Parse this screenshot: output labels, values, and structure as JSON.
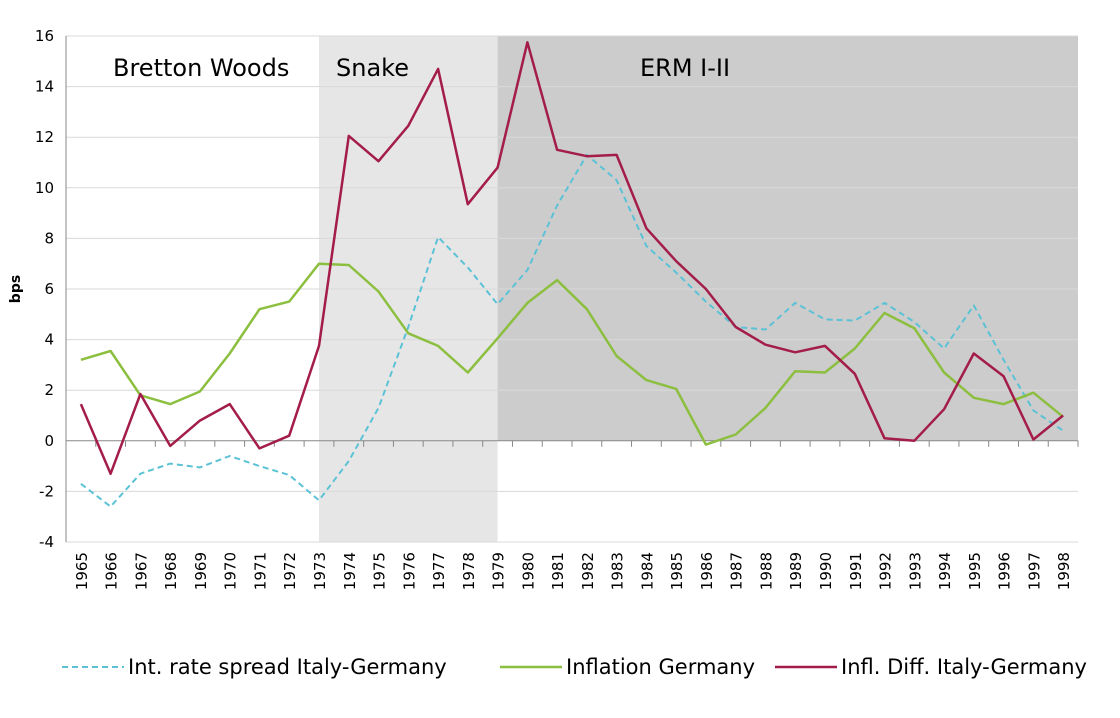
{
  "chart_data": {
    "type": "line",
    "ylabel": "bps",
    "xlabel": "",
    "ylim": [
      -4,
      16
    ],
    "yticks": [
      -4,
      -2,
      0,
      2,
      4,
      6,
      8,
      10,
      12,
      14,
      16
    ],
    "grid": "horizontal",
    "legend_position": "bottom",
    "categories": [
      "1965",
      "1966",
      "1967",
      "1968",
      "1969",
      "1970",
      "1971",
      "1972",
      "1973",
      "1974",
      "1975",
      "1976",
      "1977",
      "1978",
      "1979",
      "1980",
      "1981",
      "1982",
      "1983",
      "1984",
      "1985",
      "1986",
      "1987",
      "1988",
      "1989",
      "1990",
      "1991",
      "1992",
      "1993",
      "1994",
      "1995",
      "1996",
      "1997",
      "1998"
    ],
    "regions": [
      {
        "label": "Bretton Woods",
        "start": "1965",
        "end": "1973",
        "color": "#ffffff"
      },
      {
        "label": "Snake",
        "start": "1973",
        "end": "1979",
        "color": "#e6e6e6"
      },
      {
        "label": "ERM I-II",
        "start": "1979",
        "end": "1998",
        "color": "#cccccc"
      }
    ],
    "series": [
      {
        "name": "Int. rate spread Italy-Germany",
        "color": "#5bc2d6",
        "style": "dashed",
        "values": [
          -1.7,
          -2.6,
          -1.3,
          -0.9,
          -1.05,
          -0.6,
          -1.0,
          -1.35,
          -2.35,
          -0.8,
          1.3,
          4.5,
          8.05,
          6.85,
          5.4,
          6.75,
          9.3,
          11.3,
          10.3,
          7.7,
          6.65,
          5.5,
          4.5,
          4.4,
          5.45,
          4.8,
          4.75,
          5.45,
          4.7,
          3.65,
          5.35,
          3.2,
          1.2,
          0.4
        ]
      },
      {
        "name": "Inflation Germany",
        "color": "#8cbf3f",
        "style": "solid",
        "values": [
          3.2,
          3.55,
          1.8,
          1.45,
          1.95,
          3.45,
          5.2,
          5.5,
          7.0,
          6.95,
          5.9,
          4.25,
          3.75,
          2.7,
          4.05,
          5.45,
          6.35,
          5.2,
          3.35,
          2.4,
          2.05,
          -0.15,
          0.25,
          1.3,
          2.75,
          2.7,
          3.65,
          5.05,
          4.45,
          2.7,
          1.7,
          1.45,
          1.9,
          0.95
        ]
      },
      {
        "name": "Infl. Diff. Italy-Germany",
        "color": "#a31d48",
        "style": "solid",
        "values": [
          1.45,
          -1.3,
          1.85,
          -0.2,
          0.8,
          1.45,
          -0.3,
          0.2,
          3.75,
          12.05,
          11.05,
          12.45,
          14.7,
          9.35,
          10.8,
          15.75,
          11.5,
          11.25,
          11.3,
          8.4,
          7.1,
          6.0,
          4.5,
          3.8,
          3.5,
          3.75,
          2.65,
          0.1,
          0.0,
          1.25,
          3.45,
          2.55,
          0.05,
          1.0
        ]
      }
    ]
  }
}
